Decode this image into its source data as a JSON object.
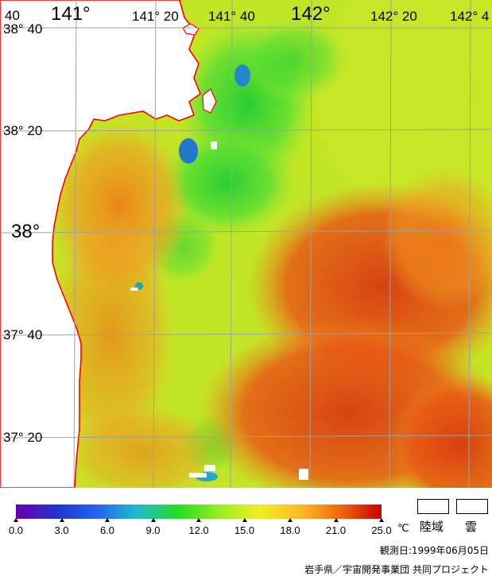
{
  "map": {
    "lon_labels": [
      {
        "text": "40",
        "id": "lon-label-140-40",
        "size": "mid"
      },
      {
        "text": "141°",
        "id": "lon-label-141",
        "size": "big"
      },
      {
        "text": "141° 20",
        "id": "lon-label-141-20",
        "size": "mid"
      },
      {
        "text": "141° 40",
        "id": "lon-label-141-40",
        "size": "mid"
      },
      {
        "text": "142°",
        "id": "lon-label-142",
        "size": "big"
      },
      {
        "text": "142° 20",
        "id": "lon-label-142-20",
        "size": "mid"
      },
      {
        "text": "142° 4",
        "id": "lon-label-142-40",
        "size": "mid"
      }
    ],
    "lat_labels": [
      {
        "text": "38° 40",
        "id": "lat-label-38-40",
        "size": "mid"
      },
      {
        "text": "38° 20",
        "id": "lat-label-38-20",
        "size": "mid"
      },
      {
        "text": "38°",
        "id": "lat-label-38",
        "size": "big"
      },
      {
        "text": "37° 40",
        "id": "lat-label-37-40",
        "size": "mid"
      },
      {
        "text": "37° 20",
        "id": "lat-label-37-20",
        "size": "mid"
      }
    ],
    "sea_temperature_range_c": [
      12,
      21
    ],
    "land_color": "#ffffff",
    "coast_color": "#ff0000",
    "grid_color": "#a0a0a0"
  },
  "legend": {
    "gradient_colors": [
      "#6a00b0",
      "#2233cc",
      "#2266ee",
      "#22bbcc",
      "#22dd22",
      "#99ee22",
      "#eeee22",
      "#ffbb22",
      "#ee6611",
      "#cc0000"
    ],
    "ticks": [
      "0.0",
      "3.0",
      "6.0",
      "9.0",
      "12.0",
      "15.0",
      "18.0",
      "21.0",
      "25.0"
    ],
    "unit": "℃",
    "land_label": "陸域",
    "cloud_label": "雲"
  },
  "footer": {
    "observation_date": "観測日:1999年06月05日",
    "credit": "岩手県／宇宙開発事業団  共同プロジェクト"
  }
}
